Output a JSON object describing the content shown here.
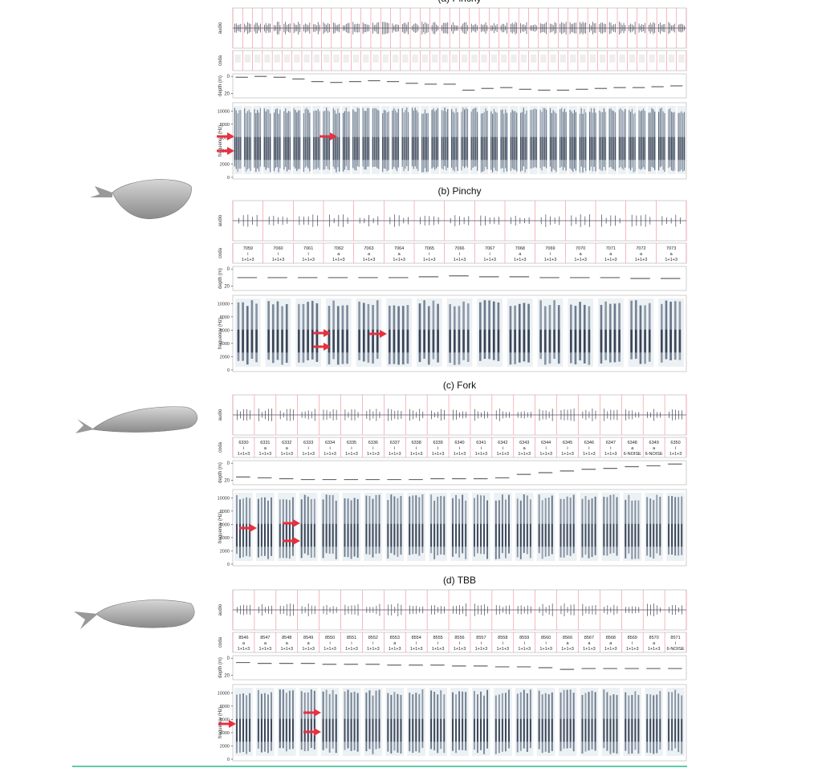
{
  "panels": [
    {
      "title": "(a) Pinchy",
      "audio_label": "audio",
      "coda_label": "coda",
      "depth_label": "depth (m)",
      "freq_label": "frequency (Hz)",
      "codas": [],
      "depth": [
        1,
        0,
        1,
        3,
        6,
        7,
        6,
        5,
        6,
        8,
        9,
        9,
        16,
        14,
        13,
        15,
        16,
        16,
        15,
        14,
        13,
        13,
        12,
        11
      ],
      "depth_ticks": [
        0,
        20
      ],
      "depth_lim": [
        -3,
        25
      ],
      "freq_ticks": [
        0,
        2000,
        4000,
        6000,
        8000,
        10000
      ],
      "freq_lim": [
        0,
        11000
      ]
    },
    {
      "title": "(b) Pinchy",
      "audio_label": "audio",
      "coda_label": "coda",
      "depth_label": "depth (m)",
      "freq_label": "frequency (Hz)",
      "codas": [
        {
          "id": "7059",
          "vowel": "i",
          "type": "1+1+3"
        },
        {
          "id": "7060",
          "vowel": "i",
          "type": "1+1+3"
        },
        {
          "id": "7061",
          "vowel": "i",
          "type": "1+1+3"
        },
        {
          "id": "7062",
          "vowel": "a",
          "type": "1+1+3"
        },
        {
          "id": "7063",
          "vowel": "a",
          "type": "1+1+3"
        },
        {
          "id": "7064",
          "vowel": "a",
          "type": "1+1+3"
        },
        {
          "id": "7065",
          "vowel": "i",
          "type": "1+1+3"
        },
        {
          "id": "7066",
          "vowel": "i",
          "type": "1+1+3"
        },
        {
          "id": "7067",
          "vowel": "i",
          "type": "1+1+3"
        },
        {
          "id": "7068",
          "vowel": "a",
          "type": "1+1+3"
        },
        {
          "id": "7069",
          "vowel": "i",
          "type": "1+1+3"
        },
        {
          "id": "7070",
          "vowel": "a",
          "type": "1+1+3"
        },
        {
          "id": "7071",
          "vowel": "a",
          "type": "1+1+3"
        },
        {
          "id": "7072",
          "vowel": "a",
          "type": "1+1+3"
        },
        {
          "id": "7073",
          "vowel": "a",
          "type": "1+1+3"
        }
      ],
      "depth": [
        10,
        10,
        10,
        10,
        10,
        10,
        9,
        8,
        9,
        9,
        10,
        10,
        10,
        11,
        11
      ],
      "depth_ticks": [
        0,
        20
      ],
      "depth_lim": [
        -3,
        25
      ],
      "freq_ticks": [
        0,
        2000,
        4000,
        6000,
        8000,
        10000
      ],
      "freq_lim": [
        0,
        11000
      ]
    },
    {
      "title": "(c) Fork",
      "audio_label": "audio",
      "coda_label": "coda",
      "depth_label": "depth (m)",
      "freq_label": "frequency (Hz)",
      "codas": [
        {
          "id": "6330",
          "vowel": "i",
          "type": "1+1+3"
        },
        {
          "id": "6331",
          "vowel": "a",
          "type": "1+1+3"
        },
        {
          "id": "6332",
          "vowel": "a",
          "type": "1+1+3"
        },
        {
          "id": "6333",
          "vowel": "i",
          "type": "1+1+3"
        },
        {
          "id": "6334",
          "vowel": "i",
          "type": "1+1+3"
        },
        {
          "id": "6335",
          "vowel": "i",
          "type": "1+1+3"
        },
        {
          "id": "6336",
          "vowel": "i",
          "type": "1+1+3"
        },
        {
          "id": "6337",
          "vowel": "i",
          "type": "1+1+3"
        },
        {
          "id": "6338",
          "vowel": "i",
          "type": "1+1+3"
        },
        {
          "id": "6339",
          "vowel": "i",
          "type": "1+1+3"
        },
        {
          "id": "6340",
          "vowel": "i",
          "type": "1+1+3"
        },
        {
          "id": "6341",
          "vowel": "i",
          "type": "1+1+3"
        },
        {
          "id": "6342",
          "vowel": "i",
          "type": "1+1+3"
        },
        {
          "id": "6343",
          "vowel": "a",
          "type": "1+1+3"
        },
        {
          "id": "6344",
          "vowel": "i",
          "type": "1+1+3"
        },
        {
          "id": "6345",
          "vowel": "i",
          "type": "1+1+3"
        },
        {
          "id": "6346",
          "vowel": "i",
          "type": "1+1+3"
        },
        {
          "id": "6347",
          "vowel": "i",
          "type": "1+1+3"
        },
        {
          "id": "6348",
          "vowel": "a",
          "type": "6-NOISE"
        },
        {
          "id": "6349",
          "vowel": "a",
          "type": "6-NOISE"
        },
        {
          "id": "6350",
          "vowel": "i",
          "type": "1+1+3"
        }
      ],
      "depth": [
        16,
        17,
        18,
        19,
        19,
        19,
        19,
        19,
        19,
        18,
        18,
        18,
        17,
        13,
        11,
        9,
        7,
        6,
        4,
        3,
        1
      ],
      "depth_ticks": [
        0,
        20
      ],
      "depth_lim": [
        -3,
        25
      ],
      "freq_ticks": [
        0,
        2000,
        4000,
        6000,
        8000,
        10000
      ],
      "freq_lim": [
        0,
        11000
      ]
    },
    {
      "title": "(d) TBB",
      "audio_label": "audio",
      "coda_label": "coda",
      "depth_label": "depth (m)",
      "freq_label": "frequency (Hz)",
      "codas": [
        {
          "id": "8546",
          "vowel": "a",
          "type": "1+1+3"
        },
        {
          "id": "8547",
          "vowel": "a",
          "type": "1+1+3"
        },
        {
          "id": "8548",
          "vowel": "a",
          "type": "1+1+3"
        },
        {
          "id": "8549",
          "vowel": "a",
          "type": "1+1+3"
        },
        {
          "id": "8550",
          "vowel": "i",
          "type": "1+1+3"
        },
        {
          "id": "8551",
          "vowel": "i",
          "type": "1+1+3"
        },
        {
          "id": "8552",
          "vowel": "i",
          "type": "1+1+3"
        },
        {
          "id": "8553",
          "vowel": "a",
          "type": "1+1+3"
        },
        {
          "id": "8554",
          "vowel": "i",
          "type": "1+1+3"
        },
        {
          "id": "8555",
          "vowel": "i",
          "type": "1+1+3"
        },
        {
          "id": "8556",
          "vowel": "i",
          "type": "1+1+3"
        },
        {
          "id": "8557",
          "vowel": "i",
          "type": "1+1+3"
        },
        {
          "id": "8558",
          "vowel": "i",
          "type": "1+1+3"
        },
        {
          "id": "8559",
          "vowel": "i",
          "type": "1+1+3"
        },
        {
          "id": "8560",
          "vowel": "i",
          "type": "1+1+3"
        },
        {
          "id": "8566",
          "vowel": "a",
          "type": "1+1+3"
        },
        {
          "id": "8567",
          "vowel": "a",
          "type": "1+1+3"
        },
        {
          "id": "8568",
          "vowel": "a",
          "type": "1+1+3"
        },
        {
          "id": "8569",
          "vowel": "i",
          "type": "1+1+3"
        },
        {
          "id": "8570",
          "vowel": "a",
          "type": "1+1+3"
        },
        {
          "id": "8571",
          "vowel": "i",
          "type": "6-NOISE"
        }
      ],
      "depth": [
        5,
        6,
        6,
        6,
        7,
        7,
        7,
        8,
        8,
        8,
        9,
        9,
        10,
        10,
        11,
        13,
        12,
        12,
        12,
        12,
        12
      ],
      "depth_ticks": [
        0,
        20
      ],
      "depth_lim": [
        -3,
        25
      ],
      "freq_ticks": [
        0,
        2000,
        4000,
        6000,
        8000,
        10000
      ],
      "freq_lim": [
        0,
        11000
      ]
    }
  ]
}
